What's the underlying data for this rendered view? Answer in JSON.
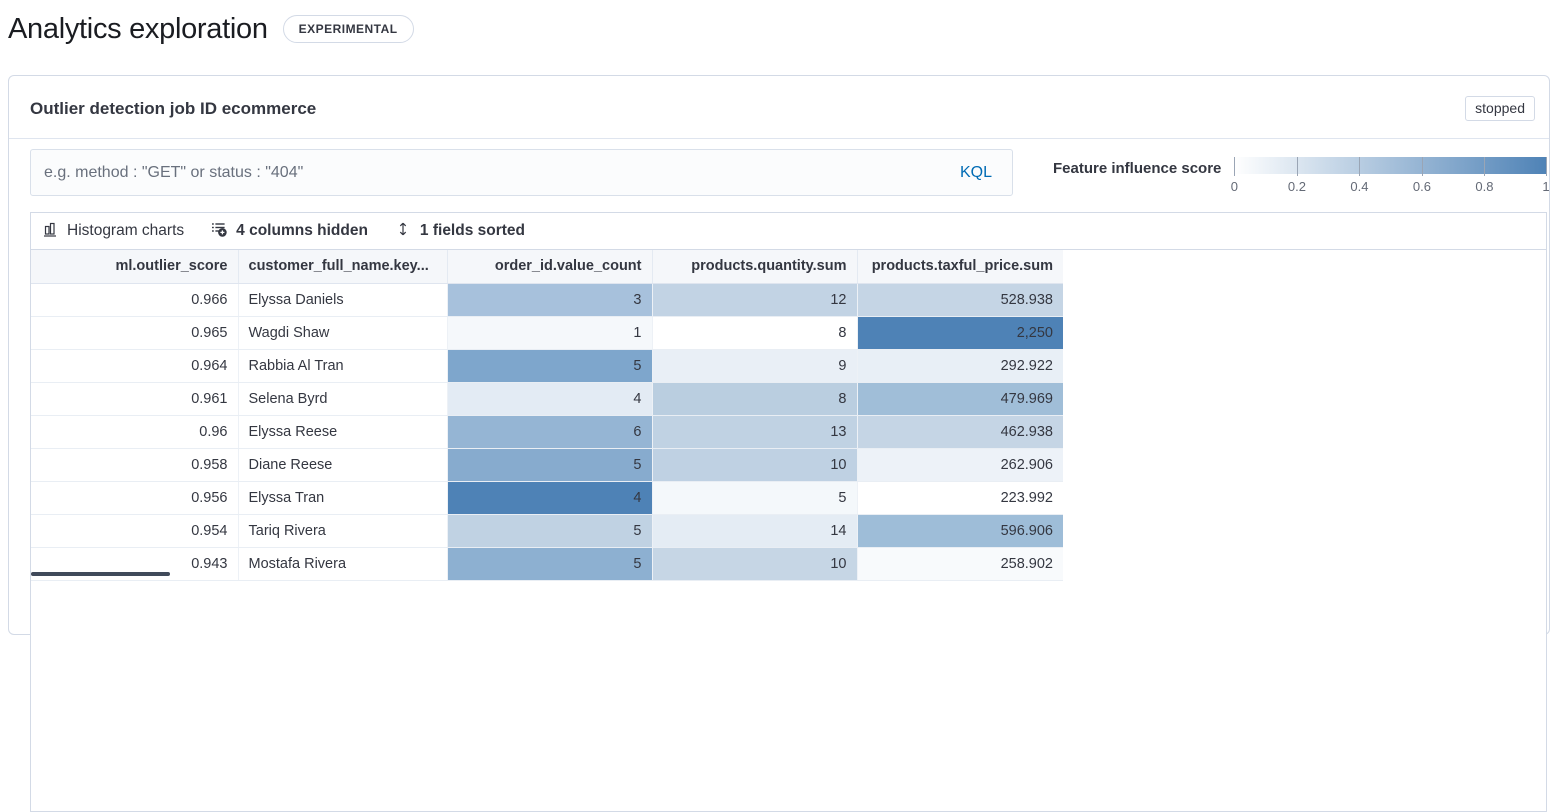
{
  "page": {
    "title": "Analytics exploration",
    "experimental_badge": "EXPERIMENTAL"
  },
  "panel": {
    "title": "Outlier detection job ID ecommerce",
    "status_badge": "stopped",
    "search": {
      "placeholder": "e.g. method : \"GET\" or status : \"404\"",
      "language_button": "KQL",
      "language_color": "#006bb4"
    },
    "legend": {
      "label": "Feature influence score",
      "ticks": [
        "0",
        "0.2",
        "0.4",
        "0.6",
        "0.8",
        "1"
      ],
      "gradient_from": "#ffffff",
      "gradient_to": "#4e82b6"
    },
    "toolbar": {
      "histogram_button": "Histogram charts",
      "columns_button": "4 columns hidden",
      "sort_button": "1 fields sorted"
    },
    "grid": {
      "columns": [
        {
          "label": "ml.outlier_score",
          "align": "right"
        },
        {
          "label": "customer_full_name.key...",
          "align": "left"
        },
        {
          "label": "order_id.value_count",
          "align": "right"
        },
        {
          "label": "products.quantity.sum",
          "align": "right"
        },
        {
          "label": "products.taxful_price.sum",
          "align": "right"
        }
      ],
      "rows": [
        {
          "cells": [
            {
              "value": "0.966"
            },
            {
              "value": "Elyssa Daniels"
            },
            {
              "value": "3",
              "color": "#a7c1dc"
            },
            {
              "value": "12",
              "color": "#c2d3e4"
            },
            {
              "value": "528.938",
              "color": "#c5d5e5"
            }
          ]
        },
        {
          "cells": [
            {
              "value": "0.965"
            },
            {
              "value": "Wagdi Shaw"
            },
            {
              "value": "1",
              "color": "#f5f8fb"
            },
            {
              "value": "8",
              "color": "#ffffff"
            },
            {
              "value": "2,250",
              "color": "#4e82b6"
            }
          ]
        },
        {
          "cells": [
            {
              "value": "0.964"
            },
            {
              "value": "Rabbia Al Tran"
            },
            {
              "value": "5",
              "color": "#7ea6cc"
            },
            {
              "value": "9",
              "color": "#e9eff6"
            },
            {
              "value": "292.922",
              "color": "#e8eff6"
            }
          ]
        },
        {
          "cells": [
            {
              "value": "0.961"
            },
            {
              "value": "Selena Byrd"
            },
            {
              "value": "4",
              "color": "#e3ebf4"
            },
            {
              "value": "8",
              "color": "#bacee0"
            },
            {
              "value": "479.969",
              "color": "#a0bed8"
            }
          ]
        },
        {
          "cells": [
            {
              "value": "0.96"
            },
            {
              "value": "Elyssa Reese"
            },
            {
              "value": "6",
              "color": "#95b5d4"
            },
            {
              "value": "13",
              "color": "#c0d2e3"
            },
            {
              "value": "462.938",
              "color": "#c5d5e5"
            }
          ]
        },
        {
          "cells": [
            {
              "value": "0.958"
            },
            {
              "value": "Diane Reese"
            },
            {
              "value": "5",
              "color": "#87abce"
            },
            {
              "value": "10",
              "color": "#bfd1e3"
            },
            {
              "value": "262.906",
              "color": "#edf2f8"
            }
          ]
        },
        {
          "cells": [
            {
              "value": "0.956"
            },
            {
              "value": "Elyssa Tran"
            },
            {
              "value": "4",
              "color": "#4e82b6"
            },
            {
              "value": "5",
              "color": "#f4f8fb"
            },
            {
              "value": "223.992",
              "color": "#ffffff"
            }
          ]
        },
        {
          "cells": [
            {
              "value": "0.954"
            },
            {
              "value": "Tariq Rivera"
            },
            {
              "value": "5",
              "color": "#c0d2e3"
            },
            {
              "value": "14",
              "color": "#e4ecf4"
            },
            {
              "value": "596.906",
              "color": "#9ebdd8"
            }
          ]
        },
        {
          "cells": [
            {
              "value": "0.943"
            },
            {
              "value": "Mostafa Rivera"
            },
            {
              "value": "5",
              "color": "#8db0d1"
            },
            {
              "value": "10",
              "color": "#c6d6e5"
            },
            {
              "value": "258.902",
              "color": "#f8fafc"
            }
          ]
        }
      ]
    }
  }
}
